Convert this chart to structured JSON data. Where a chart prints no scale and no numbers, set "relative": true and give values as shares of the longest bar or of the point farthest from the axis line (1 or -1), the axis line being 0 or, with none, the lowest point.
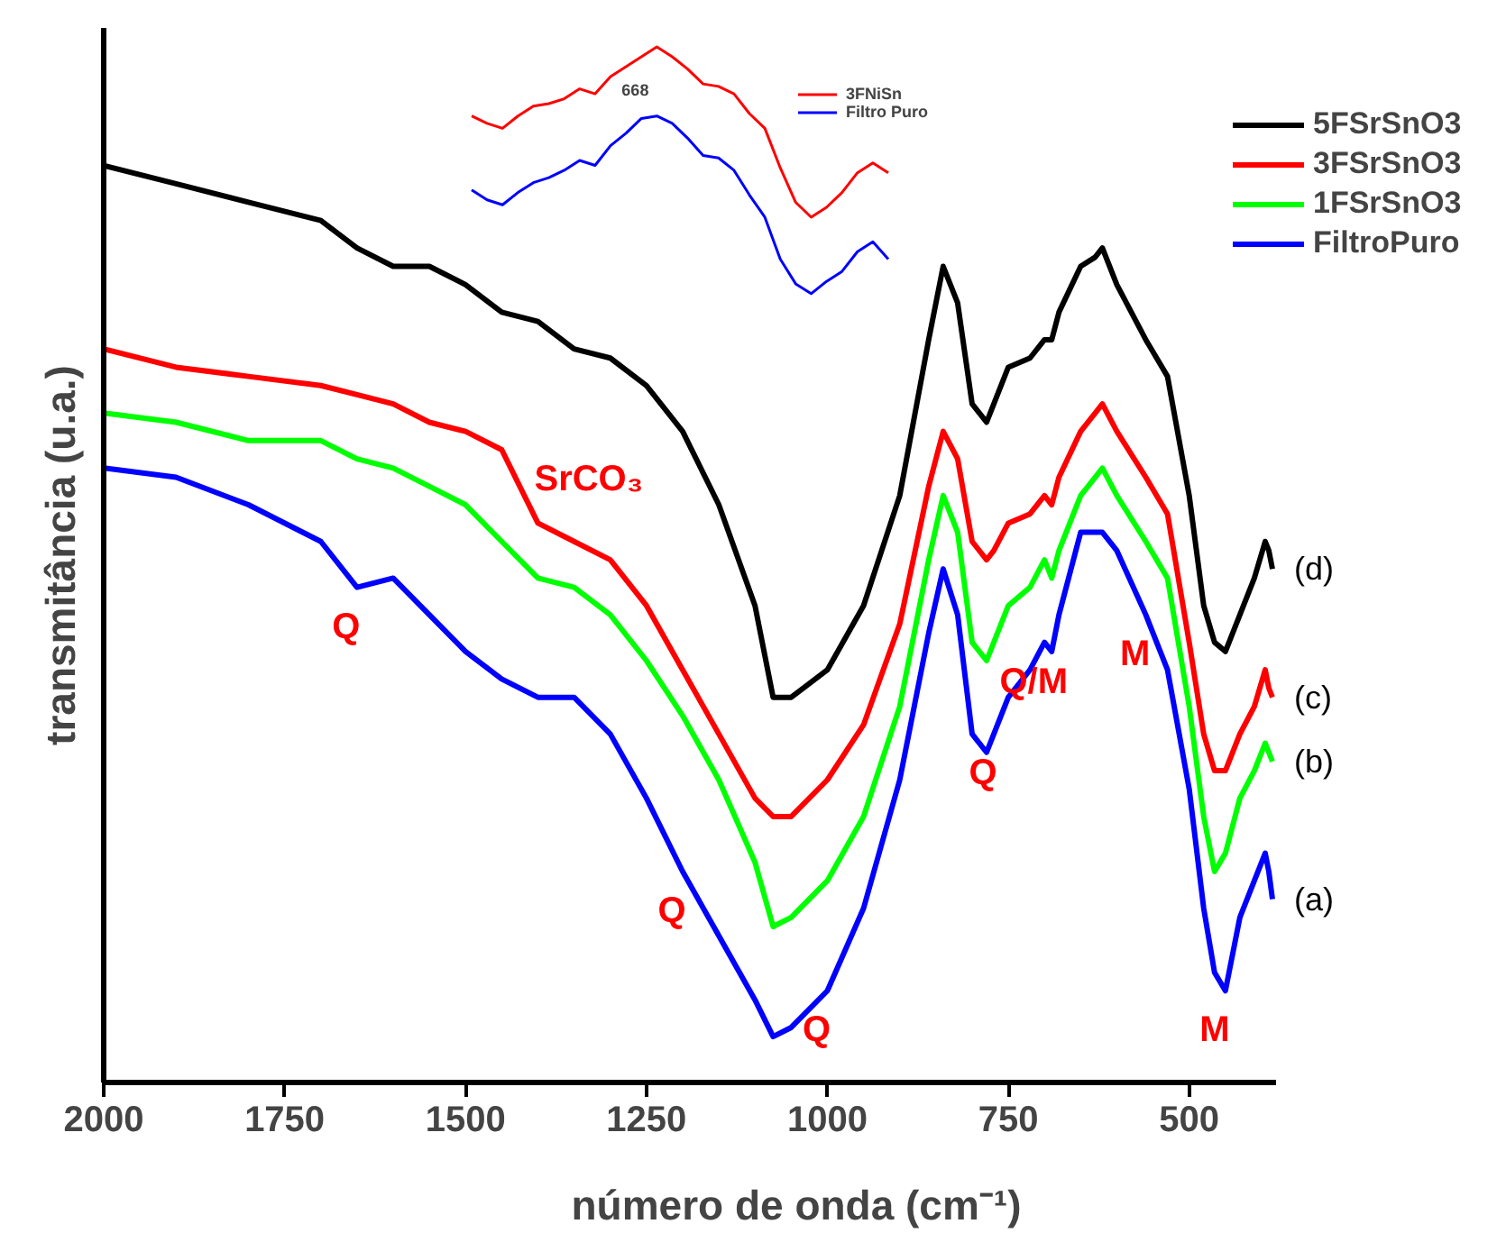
{
  "chart_data": [
    {
      "type": "line",
      "relative": true,
      "xlabel": "número de onda (cm⁻¹)",
      "ylabel": "transmitância (u.a.)",
      "x": [
        2000,
        1900,
        1800,
        1700,
        1650,
        1600,
        1550,
        1500,
        1450,
        1400,
        1350,
        1300,
        1250,
        1200,
        1150,
        1100,
        1075,
        1050,
        1000,
        950,
        900,
        860,
        840,
        820,
        800,
        780,
        770,
        750,
        720,
        700,
        690,
        680,
        650,
        630,
        620,
        600,
        560,
        530,
        500,
        480,
        465,
        450,
        430,
        410,
        395,
        390,
        385
      ],
      "xlim": [
        2000,
        380
      ],
      "xticks": [
        2000,
        1750,
        1500,
        1250,
        1000,
        750,
        500
      ],
      "series": [
        {
          "name": "5FSrSnO3",
          "color": "#000000",
          "values": [
            1.0,
            0.98,
            0.96,
            0.94,
            0.91,
            0.89,
            0.89,
            0.87,
            0.84,
            0.83,
            0.8,
            0.79,
            0.76,
            0.71,
            0.63,
            0.52,
            0.42,
            0.42,
            0.45,
            0.52,
            0.64,
            0.81,
            0.89,
            0.85,
            0.74,
            0.72,
            0.74,
            0.78,
            0.79,
            0.81,
            0.81,
            0.84,
            0.89,
            0.9,
            0.91,
            0.87,
            0.81,
            0.77,
            0.64,
            0.52,
            0.48,
            0.47,
            0.51,
            0.55,
            0.59,
            0.58,
            0.56
          ]
        },
        {
          "name": "3FSrSnO3",
          "color": "#ff0000",
          "values": [
            0.8,
            0.78,
            0.77,
            0.76,
            0.75,
            0.74,
            0.72,
            0.71,
            0.69,
            0.61,
            0.59,
            0.57,
            0.52,
            0.45,
            0.38,
            0.31,
            0.29,
            0.29,
            0.33,
            0.39,
            0.5,
            0.65,
            0.71,
            0.68,
            0.59,
            0.57,
            0.58,
            0.61,
            0.62,
            0.64,
            0.63,
            0.66,
            0.71,
            0.73,
            0.74,
            0.71,
            0.66,
            0.62,
            0.48,
            0.38,
            0.34,
            0.34,
            0.38,
            0.41,
            0.45,
            0.43,
            0.42
          ]
        },
        {
          "name": "1FSrSnO3",
          "color": "#00ff00",
          "values": [
            0.73,
            0.72,
            0.7,
            0.7,
            0.68,
            0.67,
            0.65,
            0.63,
            0.59,
            0.55,
            0.54,
            0.51,
            0.46,
            0.4,
            0.33,
            0.24,
            0.17,
            0.18,
            0.22,
            0.29,
            0.41,
            0.57,
            0.64,
            0.6,
            0.48,
            0.46,
            0.48,
            0.52,
            0.54,
            0.57,
            0.55,
            0.58,
            0.64,
            0.66,
            0.67,
            0.64,
            0.59,
            0.55,
            0.41,
            0.29,
            0.23,
            0.25,
            0.31,
            0.34,
            0.37,
            0.36,
            0.35
          ]
        },
        {
          "name": "FiltroPuro",
          "color": "#0000ff",
          "values": [
            0.67,
            0.66,
            0.63,
            0.59,
            0.54,
            0.55,
            0.51,
            0.47,
            0.44,
            0.42,
            0.42,
            0.38,
            0.31,
            0.23,
            0.16,
            0.09,
            0.05,
            0.06,
            0.1,
            0.19,
            0.33,
            0.49,
            0.56,
            0.51,
            0.38,
            0.36,
            0.38,
            0.42,
            0.45,
            0.48,
            0.47,
            0.51,
            0.6,
            0.6,
            0.6,
            0.58,
            0.51,
            0.45,
            0.32,
            0.19,
            0.12,
            0.1,
            0.18,
            0.22,
            0.25,
            0.23,
            0.2
          ]
        }
      ],
      "annotations": [
        {
          "text": "Q",
          "x": 1650,
          "y": 0.54
        },
        {
          "text": "SrCO₃",
          "x": 1400,
          "y": 0.61
        },
        {
          "text": "Q",
          "x": 1200,
          "y": 0.23
        },
        {
          "text": "Q",
          "x": 1000,
          "y": 0.1
        },
        {
          "text": "Q",
          "x": 770,
          "y": 0.38
        },
        {
          "text": "Q/M",
          "x": 700,
          "y": 0.48
        },
        {
          "text": "M",
          "x": 560,
          "y": 0.51
        },
        {
          "text": "M",
          "x": 450,
          "y": 0.1
        },
        {
          "text": "(d)",
          "x": 385,
          "y": 0.56
        },
        {
          "text": "(c)",
          "x": 385,
          "y": 0.42
        },
        {
          "text": "(b)",
          "x": 385,
          "y": 0.35
        },
        {
          "text": "(a)",
          "x": 385,
          "y": 0.2
        }
      ],
      "legend": "top right",
      "grid": false,
      "tick_labels": "x",
      "line_style": "solid"
    },
    {
      "type": "line",
      "relative": true,
      "categories": [
        null,
        null,
        null,
        null,
        null,
        null,
        null,
        null,
        null,
        null,
        null,
        null,
        null,
        null,
        null,
        null,
        null,
        null,
        null,
        null,
        null,
        null,
        null,
        null,
        null,
        null,
        null,
        null
      ],
      "series": [
        {
          "name": "3FNiSn",
          "color": "#ff0000",
          "values": [
            0.72,
            0.69,
            0.67,
            0.72,
            0.76,
            0.77,
            0.79,
            0.83,
            0.81,
            0.88,
            0.92,
            0.96,
            1.0,
            0.96,
            0.91,
            0.85,
            0.84,
            0.81,
            0.73,
            0.67,
            0.51,
            0.37,
            0.31,
            0.35,
            0.41,
            0.49,
            0.53,
            0.49
          ]
        },
        {
          "name": "Filtro Puro",
          "color": "#0000ff",
          "values": [
            0.42,
            0.38,
            0.36,
            0.41,
            0.45,
            0.47,
            0.5,
            0.54,
            0.52,
            0.6,
            0.65,
            0.71,
            0.72,
            0.69,
            0.63,
            0.56,
            0.55,
            0.5,
            0.4,
            0.31,
            0.14,
            0.04,
            0.0,
            0.05,
            0.09,
            0.17,
            0.21,
            0.14
          ]
        }
      ],
      "annotations": [
        "668"
      ],
      "legend": "top right",
      "tick_labels": false
    }
  ]
}
